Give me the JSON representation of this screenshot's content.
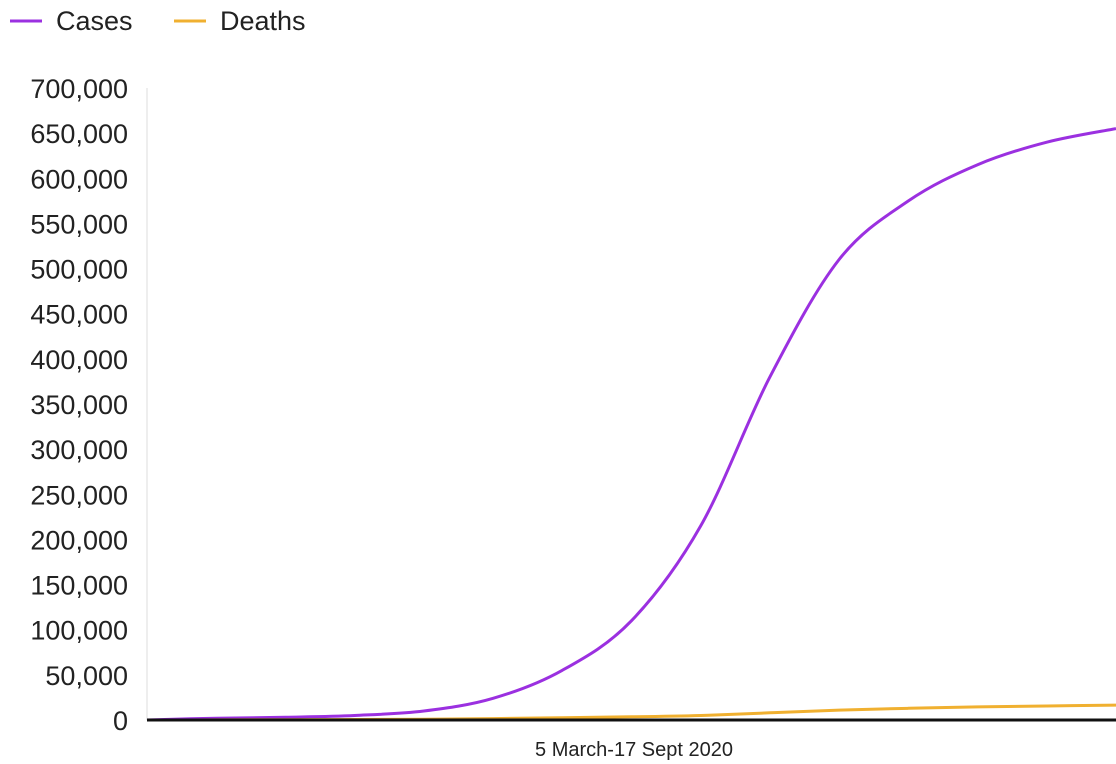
{
  "chart_data": {
    "type": "line",
    "xlabel": "5 March-17 Sept 2020",
    "ylabel": "",
    "title": "",
    "ylim": [
      0,
      700000
    ],
    "yticks": [
      0,
      50000,
      100000,
      150000,
      200000,
      250000,
      300000,
      350000,
      400000,
      450000,
      500000,
      550000,
      600000,
      650000,
      700000
    ],
    "ytick_labels": [
      "0",
      "50,000",
      "100,000",
      "150,000",
      "200,000",
      "250,000",
      "300,000",
      "350,000",
      "400,000",
      "450,000",
      "500,000",
      "550,000",
      "600,000",
      "650,000",
      "700,000"
    ],
    "x": [
      "2020-03-05",
      "2020-03-19",
      "2020-04-02",
      "2020-04-16",
      "2020-04-30",
      "2020-05-14",
      "2020-05-28",
      "2020-06-11",
      "2020-06-25",
      "2020-07-09",
      "2020-07-23",
      "2020-08-06",
      "2020-08-20",
      "2020-09-03",
      "2020-09-17"
    ],
    "grid": false,
    "legend_position": "top-left",
    "series": [
      {
        "name": "Cases",
        "color": "#9b30e0",
        "values": [
          0,
          2000,
          3000,
          5000,
          10000,
          24000,
          55000,
          110000,
          215000,
          380000,
          510000,
          575000,
          615000,
          640000,
          655000
        ]
      },
      {
        "name": "Deaths",
        "color": "#f0b030",
        "values": [
          0,
          100,
          300,
          500,
          800,
          1500,
          2500,
          3500,
          5000,
          8000,
          11000,
          13000,
          14500,
          15500,
          16500
        ]
      }
    ]
  }
}
